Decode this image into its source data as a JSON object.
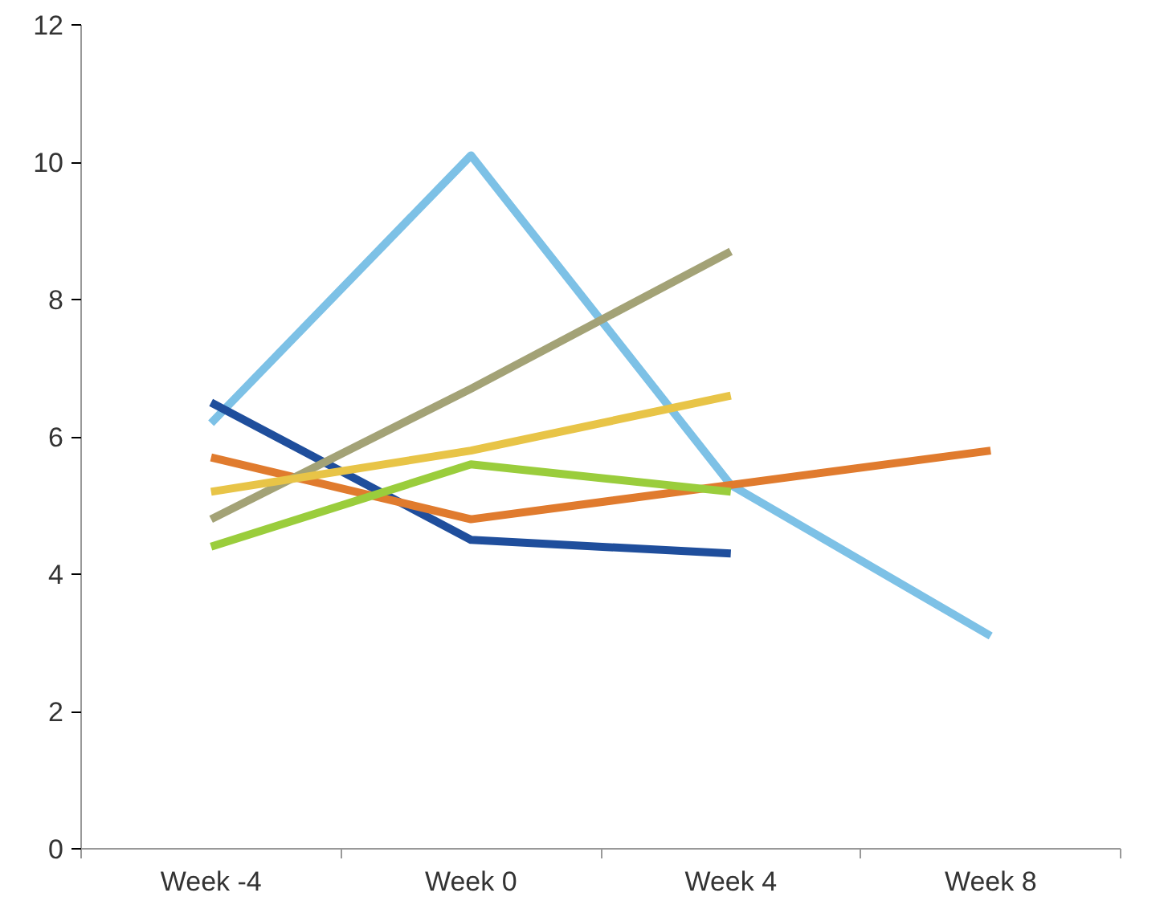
{
  "chart_data": {
    "type": "line",
    "categories": [
      "Week -4",
      "Week 0",
      "Week 4",
      "Week 8"
    ],
    "series": [
      {
        "color": "#7dc1e6",
        "values": [
          6.2,
          10.1,
          5.3,
          3.1
        ]
      },
      {
        "color": "#1f4e9c",
        "values": [
          6.5,
          4.5,
          4.3,
          null
        ]
      },
      {
        "color": "#e07b2e",
        "values": [
          5.7,
          4.8,
          5.3,
          5.8
        ]
      },
      {
        "color": "#a3a276",
        "values": [
          4.8,
          6.7,
          8.7,
          null
        ]
      },
      {
        "color": "#e8c447",
        "values": [
          5.2,
          5.8,
          6.6,
          null
        ]
      },
      {
        "color": "#9acd3c",
        "values": [
          4.4,
          5.6,
          5.2,
          null
        ]
      }
    ],
    "ylim": [
      0,
      12
    ],
    "yticks": [
      0,
      2,
      4,
      6,
      8,
      10,
      12
    ],
    "grid": false,
    "marker": "none",
    "line_style": "solid"
  }
}
